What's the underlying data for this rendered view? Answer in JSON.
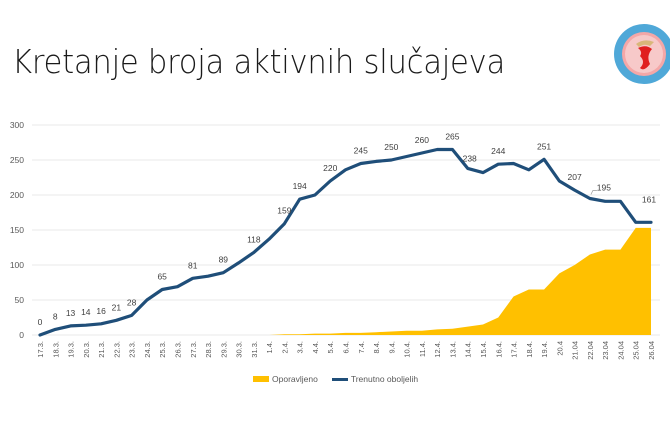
{
  "slide": {
    "title": "Kretanje broja aktivnih slučajeva",
    "logo": {
      "icon": "institute-emblem-icon",
      "text": "INSTITUT ZA JAVNO ZDRAVLJE CRNE GORE"
    }
  },
  "legend": {
    "items": [
      {
        "label": "Oporavljeno",
        "color": "#FFC000",
        "type": "area"
      },
      {
        "label": "Trenutno oboljelih",
        "color": "#1F4E79",
        "type": "line"
      }
    ]
  },
  "chart_data": {
    "type": "line",
    "title": "Kretanje broja aktivnih slučajeva",
    "xlabel": "",
    "ylabel": "",
    "ylim": [
      0,
      300
    ],
    "yticks": [
      0,
      50,
      100,
      150,
      200,
      250,
      300
    ],
    "grid": true,
    "legend_position": "bottom",
    "categories": [
      "17.3.",
      "18.3.",
      "19.3.",
      "20.3.",
      "21.3.",
      "22.3.",
      "23.3.",
      "24.3.",
      "25.3.",
      "26.3.",
      "27.3.",
      "28.3.",
      "29.3.",
      "30.3.",
      "31.3.",
      "1.4.",
      "2.4.",
      "3.4.",
      "4.4.",
      "5.4.",
      "6.4.",
      "7.4.",
      "8.4.",
      "9.4.",
      "10.4.",
      "11.4.",
      "12.4.",
      "13.4.",
      "14.4.",
      "15.4.",
      "16.4.",
      "17.4.",
      "18.4.",
      "19.4.",
      "20.4",
      "21.04",
      "22.04",
      "23.04",
      "24.04",
      "25.04",
      "26.04"
    ],
    "series": [
      {
        "name": "Oporavljeno",
        "type": "area",
        "color": "#FFC000",
        "values": [
          0,
          0,
          0,
          0,
          0,
          0,
          0,
          0,
          0,
          0,
          0,
          0,
          0,
          0,
          0,
          0,
          1,
          1,
          2,
          2,
          3,
          3,
          4,
          5,
          6,
          6,
          8,
          9,
          12,
          15,
          25,
          55,
          65,
          65,
          88,
          100,
          115,
          122,
          122,
          153,
          153
        ]
      },
      {
        "name": "Trenutno oboljelih",
        "type": "line",
        "color": "#1F4E79",
        "values": [
          0,
          8,
          13,
          14,
          16,
          21,
          28,
          50,
          65,
          69,
          81,
          84,
          89,
          103,
          118,
          137,
          159,
          194,
          200,
          220,
          236,
          245,
          248,
          250,
          255,
          260,
          265,
          265,
          238,
          232,
          244,
          245,
          236,
          251,
          220,
          207,
          195,
          191,
          191,
          161,
          161
        ],
        "data_labels": {
          "0": "0",
          "1": "8",
          "2": "13",
          "3": "14",
          "4": "16",
          "5": "21",
          "6": "28",
          "8": "65",
          "10": "81",
          "12": "89",
          "14": "118",
          "16": "159",
          "17": "194",
          "19": "220",
          "21": "245",
          "23": "250",
          "25": "260",
          "27": "265",
          "28": "238",
          "30": "244",
          "33": "251",
          "35": "207",
          "36": "195",
          "40": "161"
        }
      }
    ]
  }
}
